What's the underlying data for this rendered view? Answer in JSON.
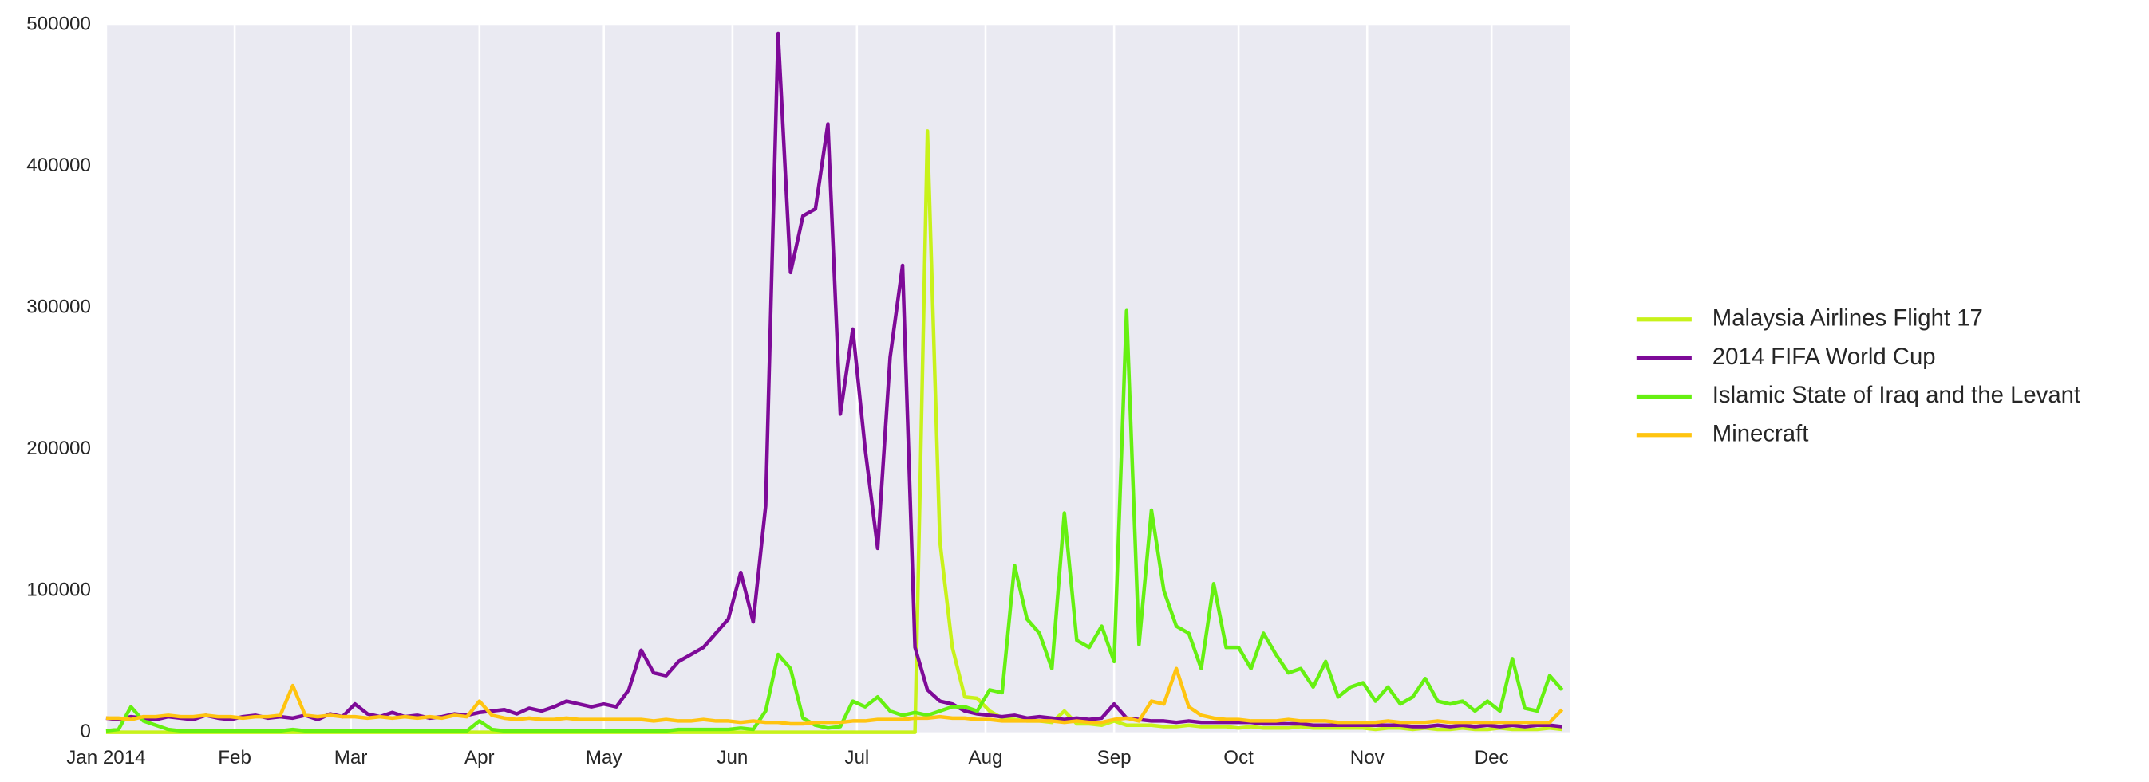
{
  "chart_data": {
    "type": "line",
    "x": [
      0,
      3,
      6,
      9,
      12,
      15,
      18,
      21,
      24,
      27,
      30,
      33,
      36,
      39,
      42,
      45,
      48,
      51,
      54,
      57,
      60,
      63,
      66,
      69,
      72,
      75,
      78,
      81,
      84,
      87,
      90,
      93,
      96,
      99,
      102,
      105,
      108,
      111,
      114,
      117,
      120,
      123,
      126,
      129,
      132,
      135,
      138,
      141,
      144,
      147,
      150,
      153,
      156,
      159,
      162,
      165,
      168,
      171,
      174,
      177,
      180,
      183,
      186,
      189,
      192,
      195,
      198,
      201,
      204,
      207,
      210,
      213,
      216,
      219,
      222,
      225,
      228,
      231,
      234,
      237,
      240,
      243,
      246,
      249,
      252,
      255,
      258,
      261,
      264,
      267,
      270,
      273,
      276,
      279,
      282,
      285,
      288,
      291,
      294,
      297,
      300,
      303,
      306,
      309,
      312,
      315,
      318,
      321,
      324,
      327,
      330,
      333,
      336,
      339,
      342,
      345,
      348,
      351
    ],
    "xlim": [
      0,
      353
    ],
    "xticks": [
      {
        "value": 0,
        "label": "Jan 2014"
      },
      {
        "value": 31,
        "label": "Feb"
      },
      {
        "value": 59,
        "label": "Mar"
      },
      {
        "value": 90,
        "label": "Apr"
      },
      {
        "value": 120,
        "label": "May"
      },
      {
        "value": 151,
        "label": "Jun"
      },
      {
        "value": 181,
        "label": "Jul"
      },
      {
        "value": 212,
        "label": "Aug"
      },
      {
        "value": 243,
        "label": "Sep"
      },
      {
        "value": 273,
        "label": "Oct"
      },
      {
        "value": 304,
        "label": "Nov"
      },
      {
        "value": 334,
        "label": "Dec"
      }
    ],
    "ylim": [
      0,
      500000
    ],
    "yticks": [
      0,
      100000,
      200000,
      300000,
      400000,
      500000
    ],
    "grid": true,
    "legend": "right",
    "series": [
      {
        "name": "Malaysia Airlines Flight 17",
        "color": "#c8f21a",
        "values": [
          0,
          0,
          0,
          0,
          0,
          0,
          0,
          0,
          0,
          0,
          0,
          0,
          0,
          0,
          0,
          0,
          0,
          0,
          0,
          0,
          0,
          0,
          0,
          0,
          0,
          0,
          0,
          0,
          0,
          0,
          0,
          0,
          0,
          0,
          0,
          0,
          0,
          0,
          0,
          0,
          0,
          0,
          0,
          0,
          0,
          0,
          0,
          0,
          0,
          0,
          0,
          0,
          0,
          0,
          0,
          0,
          0,
          0,
          0,
          0,
          0,
          0,
          0,
          0,
          0,
          0,
          425000,
          135000,
          60000,
          25000,
          24000,
          15000,
          10000,
          9000,
          8000,
          8000,
          7000,
          15000,
          6000,
          6000,
          5000,
          8000,
          5000,
          5000,
          5000,
          4000,
          4000,
          5000,
          4000,
          4000,
          4000,
          3000,
          4000,
          3000,
          3000,
          3000,
          4000,
          3000,
          3000,
          3000,
          3000,
          3000,
          2000,
          3000,
          3000,
          2000,
          3000,
          2000,
          2000,
          3000,
          2000,
          2000,
          3000,
          2000,
          2000,
          2000,
          3000,
          2000
        ]
      },
      {
        "name": "2014 FIFA World Cup",
        "color": "#7e0a98",
        "values": [
          10000,
          9000,
          11000,
          10000,
          9000,
          11000,
          10000,
          9000,
          12000,
          10000,
          9000,
          11000,
          12000,
          10000,
          11000,
          10000,
          12000,
          9000,
          13000,
          11000,
          20000,
          13000,
          11000,
          14000,
          11000,
          12000,
          10000,
          11000,
          13000,
          12000,
          14000,
          15000,
          16000,
          13000,
          17000,
          15000,
          18000,
          22000,
          20000,
          18000,
          20000,
          18000,
          30000,
          58000,
          42000,
          40000,
          50000,
          55000,
          60000,
          70000,
          80000,
          113000,
          78000,
          160000,
          494000,
          325000,
          365000,
          370000,
          430000,
          225000,
          285000,
          200000,
          130000,
          265000,
          330000,
          60000,
          30000,
          22000,
          20000,
          15000,
          13000,
          12000,
          11000,
          12000,
          10000,
          11000,
          10000,
          9000,
          10000,
          9000,
          10000,
          20000,
          10000,
          9000,
          8000,
          8000,
          7000,
          8000,
          7000,
          7000,
          7000,
          7000,
          7000,
          6000,
          6000,
          6000,
          6000,
          5000,
          5000,
          5000,
          5000,
          5000,
          5000,
          5000,
          5000,
          4000,
          4000,
          5000,
          4000,
          5000,
          4000,
          5000,
          4000,
          5000,
          4000,
          5000,
          5000,
          4000
        ]
      },
      {
        "name": "Islamic State of Iraq and the Levant",
        "color": "#66f011",
        "values": [
          1000,
          2000,
          18000,
          8000,
          5000,
          2000,
          1000,
          1000,
          1000,
          1000,
          1000,
          1000,
          1000,
          1000,
          1000,
          2000,
          1000,
          1000,
          1000,
          1000,
          1000,
          1000,
          1000,
          1000,
          1000,
          1000,
          1000,
          1000,
          1000,
          1000,
          8000,
          2000,
          1000,
          1000,
          1000,
          1000,
          1000,
          1000,
          1000,
          1000,
          1000,
          1000,
          1000,
          1000,
          1000,
          1000,
          2000,
          2000,
          2000,
          2000,
          2000,
          3000,
          2000,
          15000,
          55000,
          45000,
          10000,
          5000,
          3000,
          4000,
          22000,
          18000,
          25000,
          15000,
          12000,
          14000,
          12000,
          15000,
          18000,
          18000,
          15000,
          30000,
          28000,
          118000,
          80000,
          70000,
          45000,
          155000,
          65000,
          60000,
          75000,
          50000,
          298000,
          62000,
          157000,
          100000,
          75000,
          70000,
          45000,
          105000,
          60000,
          60000,
          45000,
          70000,
          55000,
          42000,
          45000,
          32000,
          50000,
          25000,
          32000,
          35000,
          22000,
          32000,
          20000,
          25000,
          38000,
          22000,
          20000,
          22000,
          15000,
          22000,
          15000,
          52000,
          17000,
          15000,
          40000,
          30000
        ]
      },
      {
        "name": "Minecraft",
        "color": "#ffc410",
        "values": [
          10000,
          10000,
          9000,
          11000,
          11000,
          12000,
          11000,
          11000,
          12000,
          11000,
          11000,
          10000,
          11000,
          11000,
          12000,
          33000,
          12000,
          11000,
          12000,
          11000,
          11000,
          10000,
          11000,
          10000,
          11000,
          10000,
          11000,
          10000,
          12000,
          11000,
          22000,
          12000,
          10000,
          9000,
          10000,
          9000,
          9000,
          10000,
          9000,
          9000,
          9000,
          9000,
          9000,
          9000,
          8000,
          9000,
          8000,
          8000,
          9000,
          8000,
          8000,
          7000,
          8000,
          7000,
          7000,
          6000,
          6000,
          7000,
          7000,
          7000,
          8000,
          8000,
          9000,
          9000,
          9000,
          10000,
          10000,
          11000,
          10000,
          10000,
          9000,
          9000,
          8000,
          8000,
          8000,
          8000,
          8000,
          7000,
          8000,
          7000,
          7000,
          9000,
          10000,
          8000,
          22000,
          20000,
          45000,
          18000,
          12000,
          10000,
          9000,
          9000,
          8000,
          8000,
          8000,
          9000,
          8000,
          8000,
          8000,
          7000,
          7000,
          7000,
          7000,
          8000,
          7000,
          7000,
          7000,
          8000,
          7000,
          7000,
          7000,
          7000,
          7000,
          7000,
          7000,
          7000,
          7000,
          16000
        ]
      }
    ]
  }
}
